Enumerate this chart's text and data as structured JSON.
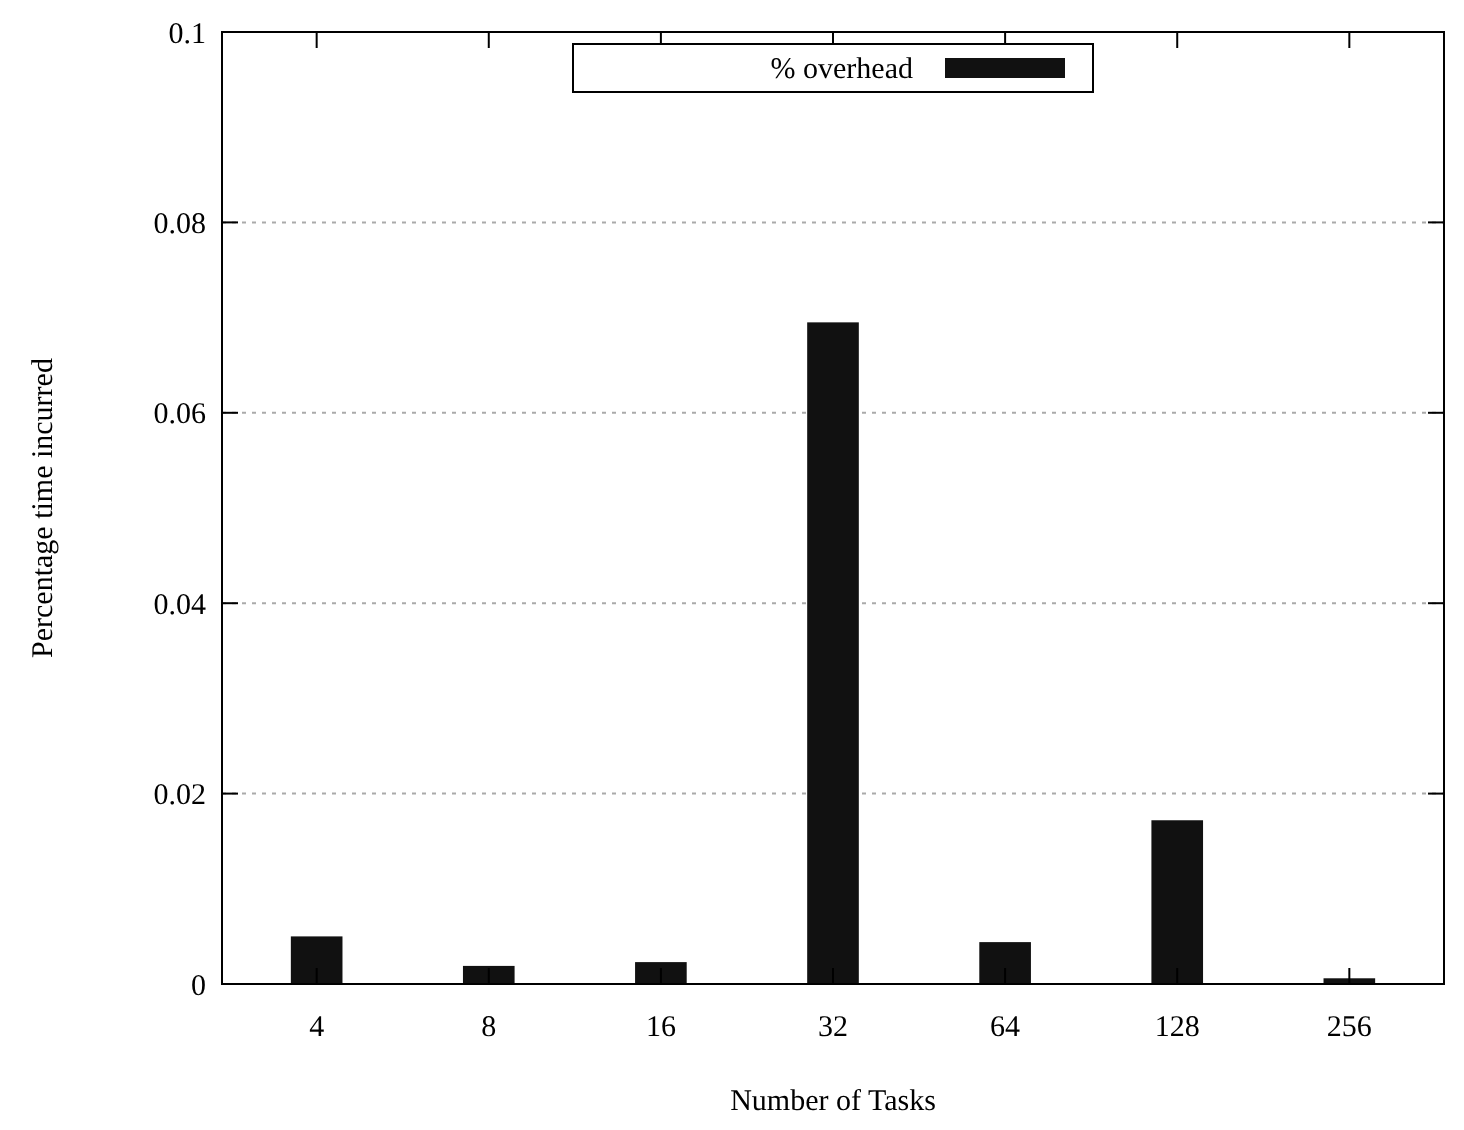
{
  "chart_data": {
    "type": "bar",
    "xlabel": "Number of Tasks",
    "ylabel": "Percentage time incurred",
    "categories": [
      "4",
      "8",
      "16",
      "32",
      "64",
      "128",
      "256"
    ],
    "series": [
      {
        "name": "% overhead",
        "color": "#111111",
        "values": [
          0.005,
          0.0019,
          0.0023,
          0.0695,
          0.0044,
          0.0172,
          0.0006
        ]
      }
    ],
    "ylim": [
      0,
      0.1
    ],
    "yticks": [
      0,
      0.02,
      0.04,
      0.06,
      0.08,
      0.1
    ],
    "grid": "y",
    "legend": "top"
  }
}
